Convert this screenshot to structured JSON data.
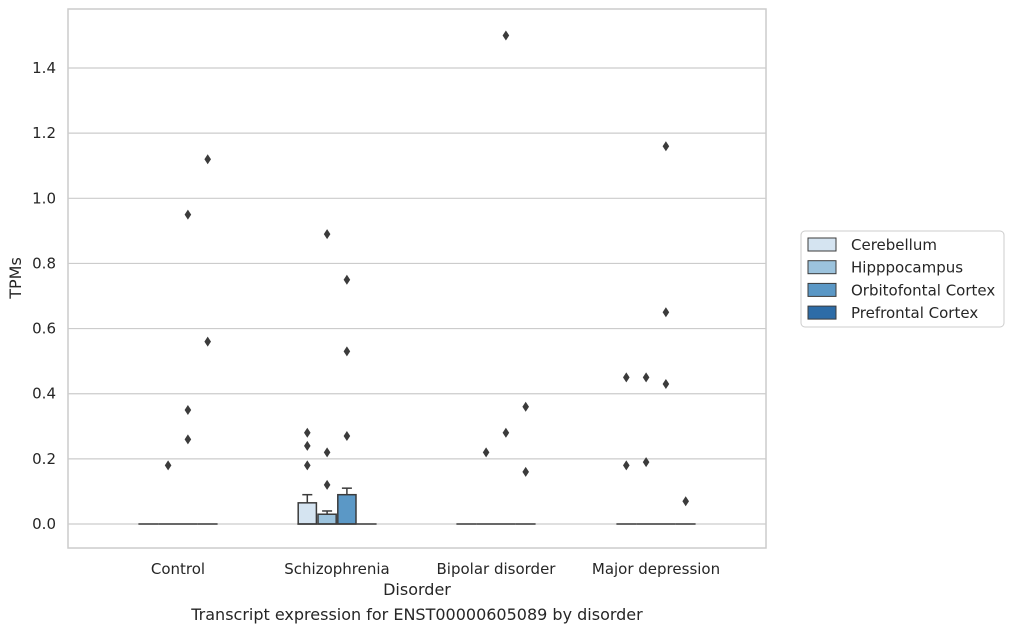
{
  "chart_data": {
    "type": "box",
    "title": "",
    "caption": "Transcript expression for ENST00000605089 by disorder",
    "xlabel": "Disorder",
    "ylabel": "TPMs",
    "ylim": [
      -0.075,
      1.58
    ],
    "yticks": [
      "0.0",
      "0.2",
      "0.4",
      "0.6",
      "0.8",
      "1.0",
      "1.2",
      "1.4"
    ],
    "ytick_values": [
      0,
      0.2,
      0.4,
      0.6,
      0.8,
      1.0,
      1.2,
      1.4
    ],
    "grid": true,
    "legend_position": "right",
    "categories": [
      "Control",
      "Schizophrenia",
      "Bipolar disorder",
      "Major depression"
    ],
    "series": [
      {
        "name": "Cerebellum",
        "color": "#d5e4f1",
        "boxes": [
          {
            "q1": 0,
            "median": 0,
            "q3": 0,
            "whisker_low": 0,
            "whisker_high": 0,
            "outliers": []
          },
          {
            "q1": 0,
            "median": 0,
            "q3": 0.065,
            "whisker_low": 0,
            "whisker_high": 0.09,
            "outliers": [
              0.18,
              0.24,
              0.28
            ]
          },
          {
            "q1": 0,
            "median": 0,
            "q3": 0,
            "whisker_low": 0,
            "whisker_high": 0,
            "outliers": []
          },
          {
            "q1": 0,
            "median": 0,
            "q3": 0,
            "whisker_low": 0,
            "whisker_high": 0,
            "outliers": [
              0.18,
              0.45
            ]
          }
        ]
      },
      {
        "name": "Hipppocampus",
        "color": "#9cc3dd",
        "boxes": [
          {
            "q1": 0,
            "median": 0,
            "q3": 0,
            "whisker_low": 0,
            "whisker_high": 0,
            "outliers": [
              0.18
            ]
          },
          {
            "q1": 0,
            "median": 0,
            "q3": 0.03,
            "whisker_low": 0,
            "whisker_high": 0.04,
            "outliers": [
              0.12,
              0.22,
              0.89
            ]
          },
          {
            "q1": 0,
            "median": 0,
            "q3": 0,
            "whisker_low": 0,
            "whisker_high": 0,
            "outliers": [
              0.22
            ]
          },
          {
            "q1": 0,
            "median": 0,
            "q3": 0,
            "whisker_low": 0,
            "whisker_high": 0,
            "outliers": [
              0.19,
              0.45
            ]
          }
        ]
      },
      {
        "name": "Orbitofontal Cortex",
        "color": "#5b98c6",
        "boxes": [
          {
            "q1": 0,
            "median": 0,
            "q3": 0,
            "whisker_low": 0,
            "whisker_high": 0,
            "outliers": [
              0.26,
              0.35,
              0.95
            ]
          },
          {
            "q1": 0,
            "median": 0,
            "q3": 0.09,
            "whisker_low": 0,
            "whisker_high": 0.11,
            "outliers": [
              0.27,
              0.53,
              0.75
            ]
          },
          {
            "q1": 0,
            "median": 0,
            "q3": 0,
            "whisker_low": 0,
            "whisker_high": 0,
            "outliers": [
              0.28,
              1.5
            ]
          },
          {
            "q1": 0,
            "median": 0,
            "q3": 0,
            "whisker_low": 0,
            "whisker_high": 0,
            "outliers": [
              0.43,
              0.65,
              1.16
            ]
          }
        ]
      },
      {
        "name": "Prefrontal Cortex",
        "color": "#2d6ca7",
        "boxes": [
          {
            "q1": 0,
            "median": 0,
            "q3": 0,
            "whisker_low": 0,
            "whisker_high": 0,
            "outliers": [
              0.56,
              1.12
            ]
          },
          {
            "q1": 0,
            "median": 0,
            "q3": 0,
            "whisker_low": 0,
            "whisker_high": 0,
            "outliers": []
          },
          {
            "q1": 0,
            "median": 0,
            "q3": 0,
            "whisker_low": 0,
            "whisker_high": 0,
            "outliers": [
              0.16,
              0.36
            ]
          },
          {
            "q1": 0,
            "median": 0,
            "q3": 0,
            "whisker_low": 0,
            "whisker_high": 0,
            "outliers": [
              0.07
            ]
          }
        ]
      }
    ]
  }
}
